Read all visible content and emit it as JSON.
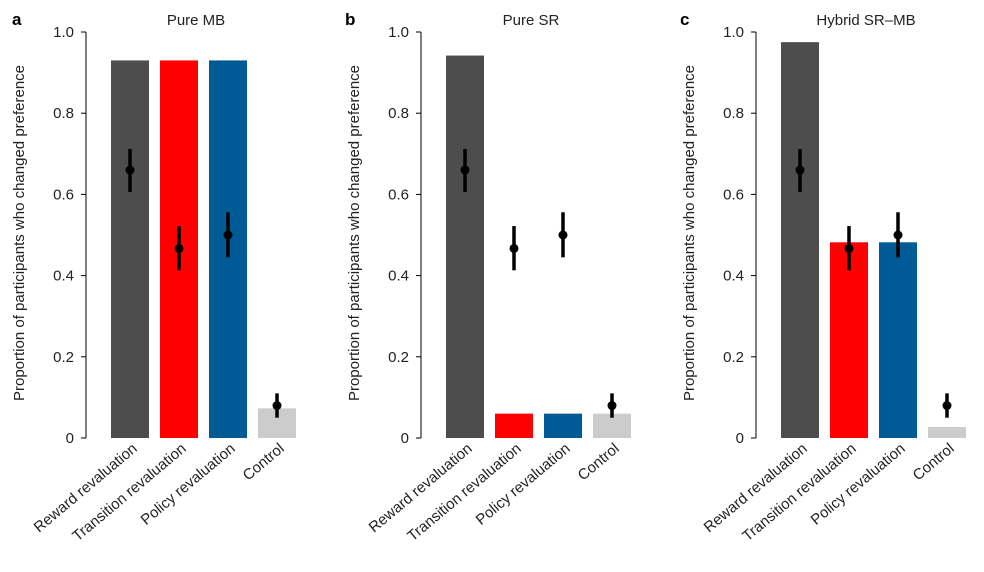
{
  "chart_data": [
    {
      "type": "bar",
      "panel_letter": "a",
      "title": "Pure MB",
      "ylabel": "Proportion of participants who changed preference",
      "ylim": [
        0,
        1.0
      ],
      "yticks": [
        0,
        0.2,
        0.4,
        0.6,
        0.8,
        1.0
      ],
      "ytick_labels": [
        "0",
        "0.2",
        "0.4",
        "0.6",
        "0.8",
        "1.0"
      ],
      "categories": [
        "Reward revaluation",
        "Transition revaluation",
        "Policy revaluation",
        "Control"
      ],
      "values": [
        0.93,
        0.93,
        0.93,
        0.073
      ],
      "colors": [
        "#4d4d4d",
        "#ff0000",
        "#005a96",
        "#cccccc"
      ],
      "points": [
        0.66,
        0.467,
        0.5,
        0.08
      ],
      "err_low": [
        0.606,
        0.413,
        0.445,
        0.05
      ],
      "err_high": [
        0.712,
        0.522,
        0.556,
        0.11
      ]
    },
    {
      "type": "bar",
      "panel_letter": "b",
      "title": "Pure SR",
      "ylabel": "Proportion of participants who changed preference",
      "ylim": [
        0,
        1.0
      ],
      "yticks": [
        0,
        0.2,
        0.4,
        0.6,
        0.8,
        1.0
      ],
      "ytick_labels": [
        "0",
        "0.2",
        "0.4",
        "0.6",
        "0.8",
        "1.0"
      ],
      "categories": [
        "Reward revaluation",
        "Transition revaluation",
        "Policy revaluation",
        "Control"
      ],
      "values": [
        0.942,
        0.06,
        0.06,
        0.06
      ],
      "colors": [
        "#4d4d4d",
        "#ff0000",
        "#005a96",
        "#cccccc"
      ],
      "points": [
        0.66,
        0.467,
        0.5,
        0.08
      ],
      "err_low": [
        0.606,
        0.413,
        0.445,
        0.05
      ],
      "err_high": [
        0.712,
        0.522,
        0.556,
        0.11
      ]
    },
    {
      "type": "bar",
      "panel_letter": "c",
      "title": "Hybrid SR–MB",
      "ylabel": "Proportion of participants who changed preference",
      "ylim": [
        0,
        1.0
      ],
      "yticks": [
        0,
        0.2,
        0.4,
        0.6,
        0.8,
        1.0
      ],
      "ytick_labels": [
        "0",
        "0.2",
        "0.4",
        "0.6",
        "0.8",
        "1.0"
      ],
      "categories": [
        "Reward revaluation",
        "Transition revaluation",
        "Policy revaluation",
        "Control"
      ],
      "values": [
        0.975,
        0.482,
        0.482,
        0.027
      ],
      "colors": [
        "#4d4d4d",
        "#ff0000",
        "#005a96",
        "#cccccc"
      ],
      "points": [
        0.66,
        0.467,
        0.5,
        0.08
      ],
      "err_low": [
        0.606,
        0.413,
        0.445,
        0.05
      ],
      "err_high": [
        0.712,
        0.522,
        0.556,
        0.11
      ]
    }
  ]
}
